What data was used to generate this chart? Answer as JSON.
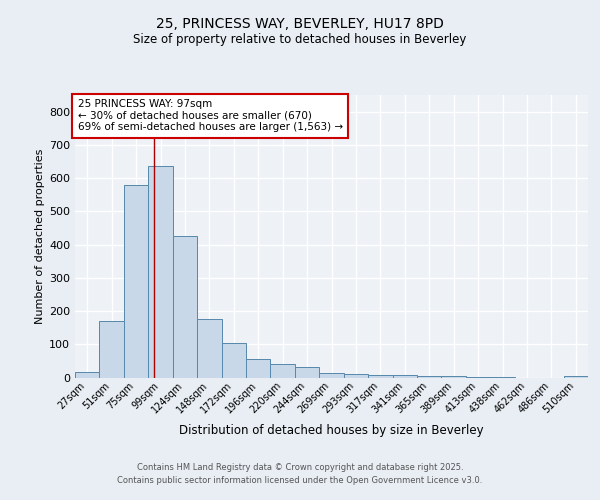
{
  "title_line1": "25, PRINCESS WAY, BEVERLEY, HU17 8PD",
  "title_line2": "Size of property relative to detached houses in Beverley",
  "xlabel": "Distribution of detached houses by size in Beverley",
  "ylabel": "Number of detached properties",
  "bar_labels": [
    "27sqm",
    "51sqm",
    "75sqm",
    "99sqm",
    "124sqm",
    "148sqm",
    "172sqm",
    "196sqm",
    "220sqm",
    "244sqm",
    "269sqm",
    "293sqm",
    "317sqm",
    "341sqm",
    "365sqm",
    "389sqm",
    "413sqm",
    "438sqm",
    "462sqm",
    "486sqm",
    "510sqm"
  ],
  "bar_values": [
    18,
    170,
    580,
    635,
    425,
    175,
    105,
    57,
    42,
    32,
    14,
    10,
    9,
    8,
    6,
    4,
    2,
    1,
    0,
    0,
    5
  ],
  "bar_color": "#c8d8e8",
  "bar_edgecolor": "#5588aa",
  "property_line_x": 2.75,
  "annotation_text": "25 PRINCESS WAY: 97sqm\n← 30% of detached houses are smaller (670)\n69% of semi-detached houses are larger (1,563) →",
  "annotation_box_color": "#ffffff",
  "annotation_box_edgecolor": "#cc0000",
  "vline_color": "#aa0000",
  "ylim": [
    0,
    850
  ],
  "yticks": [
    0,
    100,
    200,
    300,
    400,
    500,
    600,
    700,
    800
  ],
  "bg_color": "#e8eef4",
  "plot_bg_color": "#eef2f7",
  "footer_line1": "Contains HM Land Registry data © Crown copyright and database right 2025.",
  "footer_line2": "Contains public sector information licensed under the Open Government Licence v3.0."
}
